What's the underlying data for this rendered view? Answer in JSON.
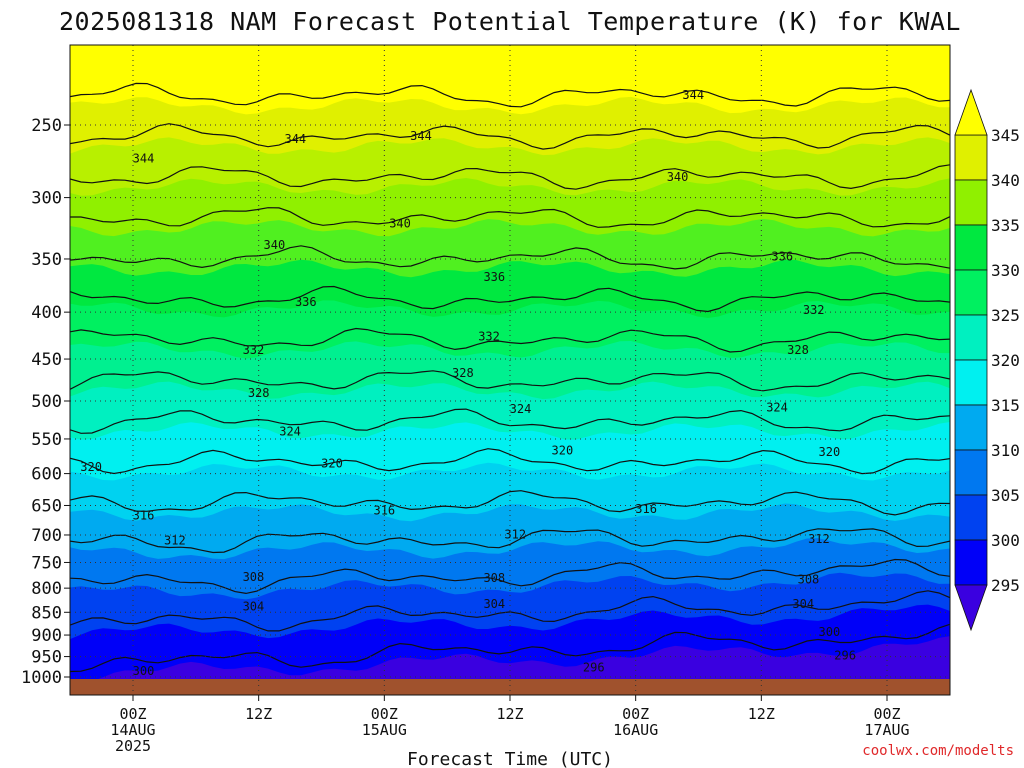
{
  "chart_data": {
    "type": "contour",
    "title": "2025081318 NAM Forecast Potential Temperature (K) for KWAL",
    "xlabel": "Forecast Time (UTC)",
    "credit": "coolwx.com/modelts",
    "y_ticks": [
      {
        "label": "250",
        "p": 250
      },
      {
        "label": "300",
        "p": 300
      },
      {
        "label": "350",
        "p": 350
      },
      {
        "label": "400",
        "p": 400
      },
      {
        "label": "450",
        "p": 450
      },
      {
        "label": "500",
        "p": 500
      },
      {
        "label": "550",
        "p": 550
      },
      {
        "label": "600",
        "p": 600
      },
      {
        "label": "650",
        "p": 650
      },
      {
        "label": "700",
        "p": 700
      },
      {
        "label": "750",
        "p": 750
      },
      {
        "label": "800",
        "p": 800
      },
      {
        "label": "850",
        "p": 850
      },
      {
        "label": "900",
        "p": 900
      },
      {
        "label": "950",
        "p": 950
      },
      {
        "label": "1000",
        "p": 1000
      }
    ],
    "x_ticks": [
      {
        "l1": "00Z",
        "l2": "14AUG",
        "l3": "2025",
        "h": 6
      },
      {
        "l1": "12Z",
        "l2": "",
        "l3": "",
        "h": 18
      },
      {
        "l1": "00Z",
        "l2": "15AUG",
        "l3": "",
        "h": 30
      },
      {
        "l1": "12Z",
        "l2": "",
        "l3": "",
        "h": 42
      },
      {
        "l1": "00Z",
        "l2": "16AUG",
        "l3": "",
        "h": 54
      },
      {
        "l1": "12Z",
        "l2": "",
        "l3": "",
        "h": 66
      },
      {
        "l1": "00Z",
        "l2": "17AUG",
        "l3": "",
        "h": 78
      }
    ],
    "colorbar_ticks": [
      "345",
      "340",
      "335",
      "330",
      "325",
      "320",
      "315",
      "310",
      "305",
      "300",
      "295"
    ],
    "contour_labels": [
      {
        "text": "344",
        "h": 7.0,
        "p": 272
      },
      {
        "text": "344",
        "h": 21.5,
        "p": 259
      },
      {
        "text": "344",
        "h": 33.5,
        "p": 257
      },
      {
        "text": "344",
        "h": 59.5,
        "p": 232
      },
      {
        "text": "340",
        "h": 19.5,
        "p": 338
      },
      {
        "text": "340",
        "h": 31.5,
        "p": 320
      },
      {
        "text": "340",
        "h": 58.0,
        "p": 285
      },
      {
        "text": "336",
        "h": 22.5,
        "p": 390
      },
      {
        "text": "336",
        "h": 40.5,
        "p": 366
      },
      {
        "text": "336",
        "h": 68.0,
        "p": 348
      },
      {
        "text": "332",
        "h": 17.5,
        "p": 440
      },
      {
        "text": "332",
        "h": 40.0,
        "p": 425
      },
      {
        "text": "332",
        "h": 71.0,
        "p": 398
      },
      {
        "text": "328",
        "h": 18.0,
        "p": 490
      },
      {
        "text": "328",
        "h": 37.5,
        "p": 466
      },
      {
        "text": "328",
        "h": 69.5,
        "p": 440
      },
      {
        "text": "324",
        "h": 21.0,
        "p": 540
      },
      {
        "text": "324",
        "h": 43.0,
        "p": 510
      },
      {
        "text": "324",
        "h": 67.5,
        "p": 508
      },
      {
        "text": "320",
        "h": 2.0,
        "p": 590
      },
      {
        "text": "320",
        "h": 25.0,
        "p": 585
      },
      {
        "text": "320",
        "h": 47.0,
        "p": 566
      },
      {
        "text": "320",
        "h": 72.5,
        "p": 568
      },
      {
        "text": "316",
        "h": 7.0,
        "p": 667
      },
      {
        "text": "316",
        "h": 30.0,
        "p": 658
      },
      {
        "text": "316",
        "h": 55.0,
        "p": 656
      },
      {
        "text": "312",
        "h": 10.0,
        "p": 710
      },
      {
        "text": "312",
        "h": 42.5,
        "p": 699
      },
      {
        "text": "312",
        "h": 71.5,
        "p": 707
      },
      {
        "text": "308",
        "h": 17.5,
        "p": 778
      },
      {
        "text": "308",
        "h": 40.5,
        "p": 780
      },
      {
        "text": "308",
        "h": 70.5,
        "p": 783
      },
      {
        "text": "304",
        "h": 17.5,
        "p": 838
      },
      {
        "text": "304",
        "h": 40.5,
        "p": 832
      },
      {
        "text": "304",
        "h": 70.0,
        "p": 832
      },
      {
        "text": "300",
        "h": 7.0,
        "p": 985
      },
      {
        "text": "300",
        "h": 72.5,
        "p": 893
      },
      {
        "text": "296",
        "h": 50.0,
        "p": 977
      },
      {
        "text": "296",
        "h": 74.0,
        "p": 947
      }
    ],
    "fill_colors": [
      "#3a00e0",
      "#0000f8",
      "#0042f0",
      "#0078f0",
      "#00aaf0",
      "#00d2f0",
      "#00f0f0",
      "#00f0c0",
      "#00f090",
      "#00f060",
      "#00e840",
      "#50f020",
      "#90f000",
      "#b8f000",
      "#e0f000",
      "#ffff00"
    ]
  }
}
